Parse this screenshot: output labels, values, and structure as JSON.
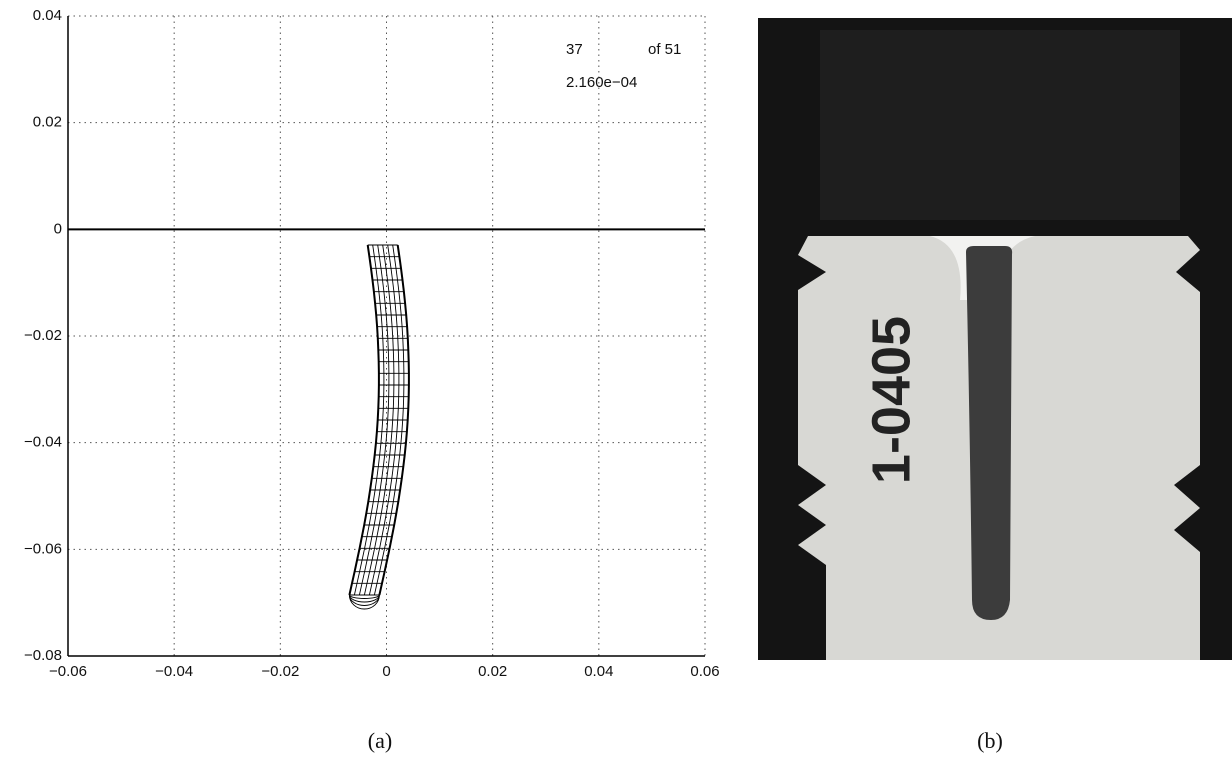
{
  "chart_data": {
    "type": "mesh",
    "xlim": [
      -0.06,
      0.06
    ],
    "ylim": [
      -0.08,
      0.04
    ],
    "xticks": [
      {
        "value": -0.06,
        "label": "−0.06"
      },
      {
        "value": -0.04,
        "label": "−0.04"
      },
      {
        "value": -0.02,
        "label": "−0.02"
      },
      0,
      0.02,
      0.04,
      0.06
    ],
    "yticks": [
      {
        "value": -0.08,
        "label": "−0.08"
      },
      {
        "value": -0.06,
        "label": "−0.06"
      },
      {
        "value": -0.04,
        "label": "−0.04"
      },
      {
        "value": -0.02,
        "label": "−0.02"
      },
      0,
      0.02,
      0.04
    ],
    "grid": true,
    "annotations": [
      "37",
      "of 51",
      "2.160e−04"
    ],
    "caption": "(a)"
  },
  "photo": {
    "label": "1-0405",
    "caption": "(b)"
  }
}
